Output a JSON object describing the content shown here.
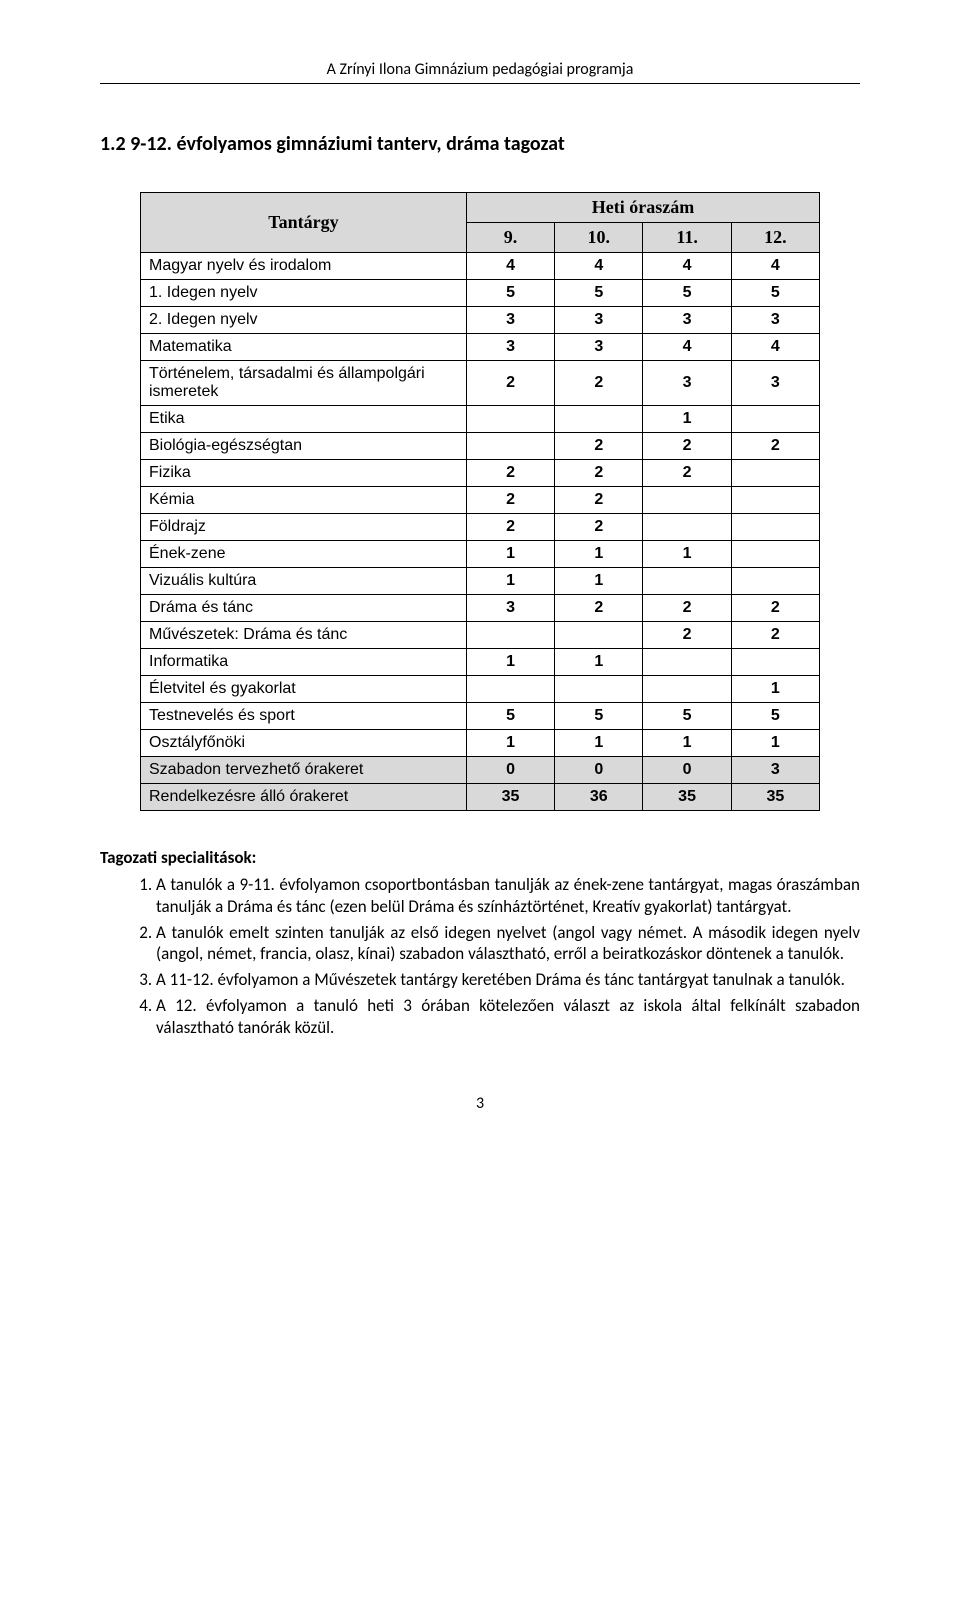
{
  "header": "A Zrínyi Ilona Gimnázium pedagógiai programja",
  "section_title": "1.2 9-12. évfolyamos gimnáziumi tanterv, dráma tagozat",
  "table": {
    "subject_header": "Tantárgy",
    "hours_header": "Heti óraszám",
    "grade_headers": [
      "9.",
      "10.",
      "11.",
      "12."
    ],
    "rows": [
      {
        "label": "Magyar nyelv és irodalom",
        "vals": [
          "4",
          "4",
          "4",
          "4"
        ],
        "shaded": false
      },
      {
        "label": "1. Idegen nyelv",
        "vals": [
          "5",
          "5",
          "5",
          "5"
        ],
        "shaded": false
      },
      {
        "label": "2. Idegen nyelv",
        "vals": [
          "3",
          "3",
          "3",
          "3"
        ],
        "shaded": false
      },
      {
        "label": "Matematika",
        "vals": [
          "3",
          "3",
          "4",
          "4"
        ],
        "shaded": false
      },
      {
        "label": "Történelem, társadalmi és állampolgári ismeretek",
        "vals": [
          "2",
          "2",
          "3",
          "3"
        ],
        "shaded": false
      },
      {
        "label": "Etika",
        "vals": [
          "",
          "",
          "1",
          ""
        ],
        "shaded": false
      },
      {
        "label": "Biológia-egészségtan",
        "vals": [
          "",
          "2",
          "2",
          "2"
        ],
        "shaded": false
      },
      {
        "label": "Fizika",
        "vals": [
          "2",
          "2",
          "2",
          ""
        ],
        "shaded": false
      },
      {
        "label": "Kémia",
        "vals": [
          "2",
          "2",
          "",
          ""
        ],
        "shaded": false
      },
      {
        "label": "Földrajz",
        "vals": [
          "2",
          "2",
          "",
          ""
        ],
        "shaded": false
      },
      {
        "label": "Ének-zene",
        "vals": [
          "1",
          "1",
          "1",
          ""
        ],
        "shaded": false
      },
      {
        "label": "Vizuális kultúra",
        "vals": [
          "1",
          "1",
          "",
          ""
        ],
        "shaded": false
      },
      {
        "label": "Dráma és tánc",
        "vals": [
          "3",
          "2",
          "2",
          "2"
        ],
        "shaded": false
      },
      {
        "label": " Művészetek: Dráma és tánc",
        "vals": [
          "",
          "",
          "2",
          "2"
        ],
        "shaded": false
      },
      {
        "label": "Informatika",
        "vals": [
          "1",
          "1",
          "",
          ""
        ],
        "shaded": false
      },
      {
        "label": "Életvitel és gyakorlat",
        "vals": [
          "",
          "",
          "",
          "1"
        ],
        "shaded": false
      },
      {
        "label": "Testnevelés és sport",
        "vals": [
          "5",
          "5",
          "5",
          "5"
        ],
        "shaded": false
      },
      {
        "label": "Osztályfőnöki",
        "vals": [
          "1",
          "1",
          "1",
          "1"
        ],
        "shaded": false
      },
      {
        "label": "Szabadon tervezhető órakeret",
        "vals": [
          "0",
          "0",
          "0",
          "3"
        ],
        "shaded": true
      },
      {
        "label": "Rendelkezésre álló órakeret",
        "vals": [
          "35",
          "36",
          "35",
          "35"
        ],
        "shaded": true
      }
    ]
  },
  "notes_title": "Tagozati specialitások:",
  "notes": [
    "A tanulók a 9-11. évfolyamon csoportbontásban tanulják az ének-zene tantárgyat, magas óraszámban tanulják a Dráma és tánc (ezen belül Dráma és színháztörténet, Kreatív gyakorlat) tantárgyat.",
    "A tanulók emelt szinten tanulják az első idegen nyelvet (angol vagy német. A második idegen nyelv (angol, német, francia, olasz, kínai) szabadon választható, erről a beiratkozáskor döntenek a tanulók.",
    "A 11-12. évfolyamon a Művészetek tantárgy keretében Dráma és tánc tantárgyat tanulnak a tanulók.",
    "A 12. évfolyamon a tanuló heti 3 órában kötelezően választ az iskola által felkínált  szabadon választható tanórák közül."
  ],
  "page_number": "3",
  "colors": {
    "shaded_bg": "#d9d9d9",
    "border": "#000000",
    "text": "#000000",
    "page_bg": "#ffffff"
  }
}
